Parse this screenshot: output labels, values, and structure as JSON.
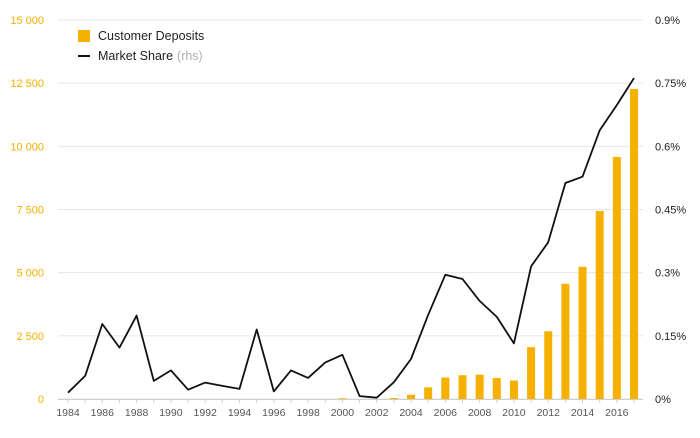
{
  "chart_data": {
    "type": "bar+line",
    "colors": {
      "bars": "#f5b000",
      "line": "#111111",
      "left_axis_text": "#f5b000",
      "right_axis_text": "#222222",
      "grid": "#e6e6e6"
    },
    "years": [
      1984,
      1985,
      1986,
      1987,
      1988,
      1989,
      1990,
      1991,
      1992,
      1993,
      1994,
      1995,
      1996,
      1997,
      1998,
      1999,
      2000,
      2001,
      2002,
      2003,
      2004,
      2005,
      2006,
      2007,
      2008,
      2009,
      2010,
      2011,
      2012,
      2013,
      2014,
      2015,
      2016,
      2017
    ],
    "x_tick_labels": [
      "1984",
      "1986",
      "1988",
      "1990",
      "1992",
      "1994",
      "1996",
      "1998",
      "2000",
      "2002",
      "2004",
      "2006",
      "2008",
      "2010",
      "2012",
      "2014",
      "2016"
    ],
    "series": [
      {
        "name": "Customer Deposits",
        "axis": "left",
        "kind": "bar",
        "values": [
          0,
          0,
          0,
          0,
          0,
          0,
          0,
          0,
          0,
          0,
          0,
          0,
          0,
          0,
          0,
          0,
          30,
          0,
          0,
          40,
          170,
          460,
          850,
          940,
          960,
          830,
          730,
          2050,
          2680,
          4560,
          5230,
          7440,
          9580,
          12270
        ]
      },
      {
        "name": "Market Share",
        "suffix": "(rhs)",
        "axis": "right",
        "kind": "line",
        "values": [
          0.015,
          0.055,
          0.178,
          0.122,
          0.198,
          0.043,
          0.068,
          0.022,
          0.039,
          0.031,
          0.024,
          0.165,
          0.018,
          0.068,
          0.05,
          0.087,
          0.105,
          0.007,
          0.003,
          0.04,
          0.095,
          0.2,
          0.295,
          0.285,
          0.233,
          0.195,
          0.132,
          0.315,
          0.372,
          0.513,
          0.528,
          0.638,
          0.698,
          0.762
        ]
      }
    ],
    "left_axis": {
      "min": 0,
      "max": 15000,
      "tick_labels": [
        "0",
        "2 500",
        "5 000",
        "7 500",
        "10 000",
        "12 500",
        "15 000"
      ],
      "tick_values": [
        0,
        2500,
        5000,
        7500,
        10000,
        12500,
        15000
      ]
    },
    "right_axis": {
      "min": 0,
      "max": 0.9,
      "tick_labels": [
        "0%",
        "0.15%",
        "0.3%",
        "0.45%",
        "0.6%",
        "0.75%",
        "0.9%"
      ],
      "tick_values": [
        0,
        0.15,
        0.3,
        0.45,
        0.6,
        0.75,
        0.9
      ]
    },
    "legend": {
      "position": "top-left",
      "items": [
        {
          "label": "Customer Deposits",
          "suffix": ""
        },
        {
          "label": "Market Share",
          "suffix": "(rhs)"
        }
      ]
    }
  }
}
